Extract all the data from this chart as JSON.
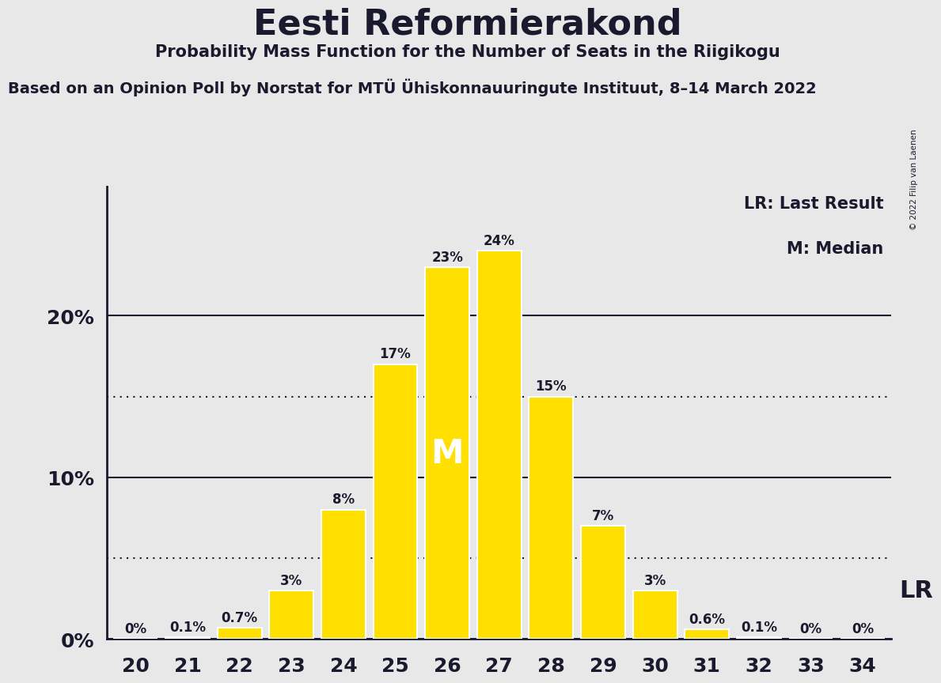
{
  "title": "Eesti Reformierakond",
  "subtitle": "Probability Mass Function for the Number of Seats in the Riigikogu",
  "source_line": "Based on an Opinion Poll by Norstat for MTÜ Ühiskonnauuringute Instituut, 8–14 March 2022",
  "copyright": "© 2022 Filip van Laenen",
  "categories": [
    20,
    21,
    22,
    23,
    24,
    25,
    26,
    27,
    28,
    29,
    30,
    31,
    32,
    33,
    34
  ],
  "values": [
    0.0,
    0.1,
    0.7,
    3.0,
    8.0,
    17.0,
    23.0,
    24.0,
    15.0,
    7.0,
    3.0,
    0.6,
    0.1,
    0.0,
    0.0
  ],
  "labels": [
    "0%",
    "0.1%",
    "0.7%",
    "3%",
    "8%",
    "17%",
    "23%",
    "24%",
    "15%",
    "7%",
    "3%",
    "0.6%",
    "0.1%",
    "0%",
    "0%"
  ],
  "bar_color": "#FFE000",
  "bar_edge_color": "#FFFFFF",
  "background_color": "#E8E8E8",
  "text_color": "#1a1a2e",
  "median_bar_value": 26,
  "lr_bar_value": 30,
  "dotted_lines": [
    5.0,
    15.0
  ],
  "solid_lines": [
    10.0,
    20.0
  ],
  "yticks_labels": [
    "0%",
    "10%",
    "20%"
  ],
  "yticks_values": [
    0,
    10,
    20
  ],
  "ylim": [
    0,
    28
  ],
  "legend_lr": "LR: Last Result",
  "legend_m": "M: Median"
}
